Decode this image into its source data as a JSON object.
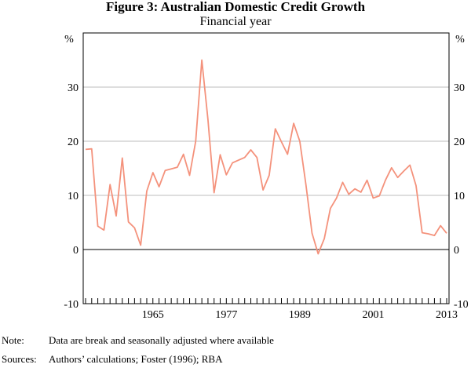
{
  "chart_data": {
    "type": "line",
    "title": "Figure 3: Australian Domestic Credit Growth",
    "subtitle": "Financial year",
    "unit_left": "%",
    "unit_right": "%",
    "ylim": [
      -10,
      40
    ],
    "yticks": [
      -10,
      0,
      10,
      20,
      30
    ],
    "x_tick_labels": [
      "1965",
      "1977",
      "1989",
      "2001",
      "2013"
    ],
    "grid": true,
    "series": [
      {
        "name": "",
        "color": "#f4927c",
        "x": [
          1954,
          1955,
          1956,
          1957,
          1958,
          1959,
          1960,
          1961,
          1962,
          1963,
          1964,
          1965,
          1966,
          1967,
          1968,
          1969,
          1970,
          1971,
          1972,
          1973,
          1974,
          1975,
          1976,
          1977,
          1978,
          1979,
          1980,
          1981,
          1982,
          1983,
          1984,
          1985,
          1986,
          1987,
          1988,
          1989,
          1990,
          1991,
          1992,
          1993,
          1994,
          1995,
          1996,
          1997,
          1998,
          1999,
          2000,
          2001,
          2002,
          2003,
          2004,
          2005,
          2006,
          2007,
          2008,
          2009,
          2010,
          2011,
          2012,
          2013
        ],
        "values": [
          18.5,
          18.6,
          4.3,
          3.6,
          12,
          6.2,
          16.9,
          5.1,
          4,
          0.8,
          10.8,
          14.2,
          11.6,
          14.6,
          14.9,
          15.2,
          17.6,
          13.7,
          20,
          35,
          24,
          10.5,
          17.5,
          13.8,
          16,
          16.5,
          17,
          18.4,
          17,
          11,
          13.7,
          22.3,
          19.9,
          17.6,
          23.3,
          20,
          12,
          3,
          -0.8,
          2,
          7.6,
          9.5,
          12.4,
          10.2,
          11.2,
          10.6,
          12.8,
          9.5,
          9.9,
          12.8,
          15.1,
          13.3,
          14.5,
          15.6,
          11.8,
          3.1,
          2.9,
          2.6,
          4.4,
          3
        ]
      }
    ]
  },
  "footnotes": {
    "note_label": "Note:",
    "note_text": "Data are break and seasonally adjusted where available",
    "sources_label": "Sources:",
    "sources_text": "Authors’ calculations; Foster (1996); RBA"
  }
}
